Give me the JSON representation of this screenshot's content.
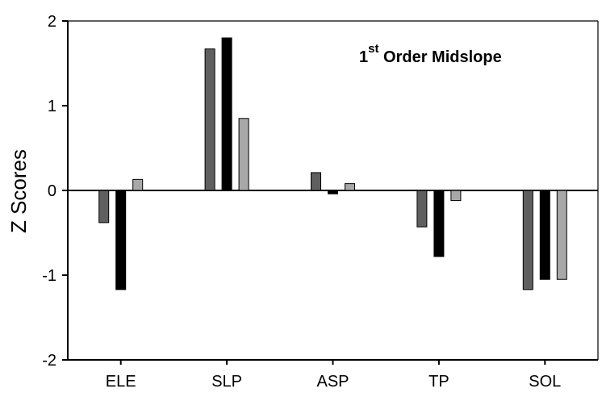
{
  "chart_data": {
    "type": "bar",
    "title": "",
    "annotation": {
      "base": "1",
      "sup": "st",
      "rest": " Order Midslope"
    },
    "xlabel": "",
    "ylabel": "Z Scores",
    "ylim": [
      -2,
      2
    ],
    "yticks": [
      "2",
      "1",
      "0",
      "-1",
      "-2"
    ],
    "ytick_values": [
      2,
      1,
      0,
      -1,
      -2
    ],
    "categories": [
      "ELE",
      "SLP",
      "ASP",
      "TP",
      "SOL"
    ],
    "series": [
      {
        "values": [
          -0.38,
          1.67,
          0.21,
          -0.43,
          -1.17
        ],
        "color": "#5f5f5f"
      },
      {
        "values": [
          -1.17,
          1.8,
          -0.04,
          -0.78,
          -1.05
        ],
        "color": "#000000"
      },
      {
        "values": [
          0.13,
          0.85,
          0.08,
          -0.12,
          -1.05
        ],
        "color": "#a8a8a8"
      }
    ],
    "grid": false,
    "legend": "none"
  }
}
